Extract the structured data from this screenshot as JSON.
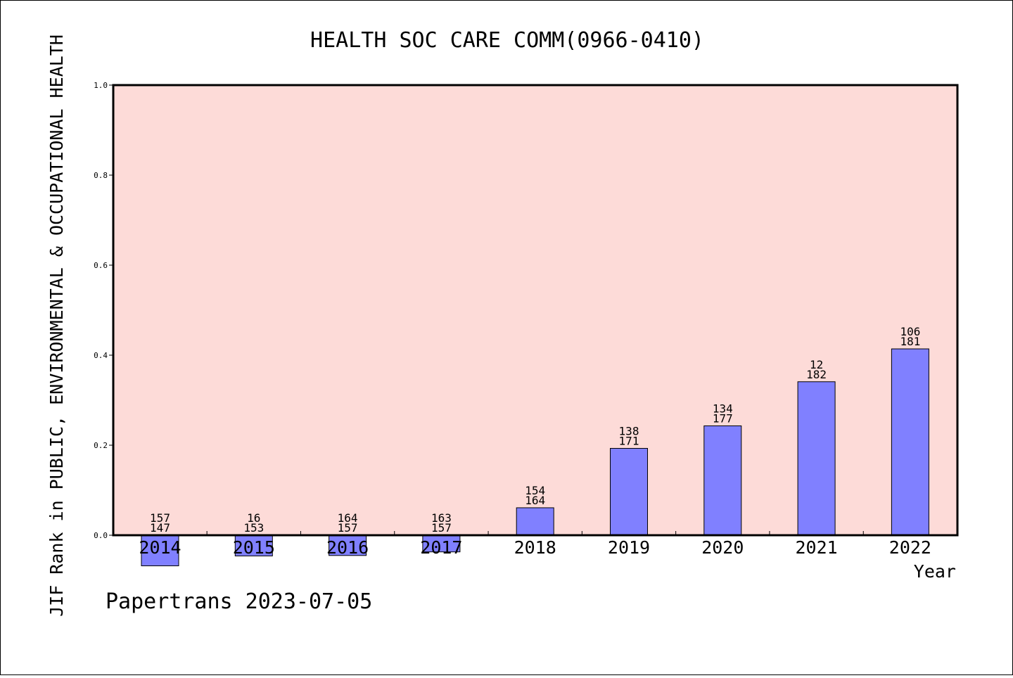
{
  "chart_data": {
    "type": "bar",
    "title": "HEALTH SOC CARE COMM(0966-0410)",
    "ylabel": "JIF Rank in PUBLIC, ENVIRONMENTAL & OCCUPATIONAL HEALTH",
    "xlabel": "Year",
    "ylim": [
      0,
      1.0
    ],
    "yticks": [
      "0.0",
      "0.2",
      "0.4",
      "0.6",
      "0.8",
      "1.0"
    ],
    "categories": [
      "2014",
      "2015",
      "2016",
      "2017",
      "2018",
      "2019",
      "2020",
      "2021",
      "2022"
    ],
    "values": [
      -0.068,
      -0.046,
      -0.045,
      -0.037,
      0.061,
      0.193,
      0.243,
      0.341,
      0.414
    ],
    "labels_top": [
      "157",
      "16",
      "164",
      "163",
      "154",
      "138",
      "134",
      "12",
      "106"
    ],
    "labels_bottom": [
      "147",
      "153",
      "157",
      "157",
      "164",
      "171",
      "177",
      "182",
      "181"
    ],
    "grid": false,
    "colors": {
      "plot_background": "#fddbd8",
      "bar_fill": "#8080ff",
      "bar_stroke": "#000000"
    }
  },
  "footer": "Papertrans 2023-07-05"
}
